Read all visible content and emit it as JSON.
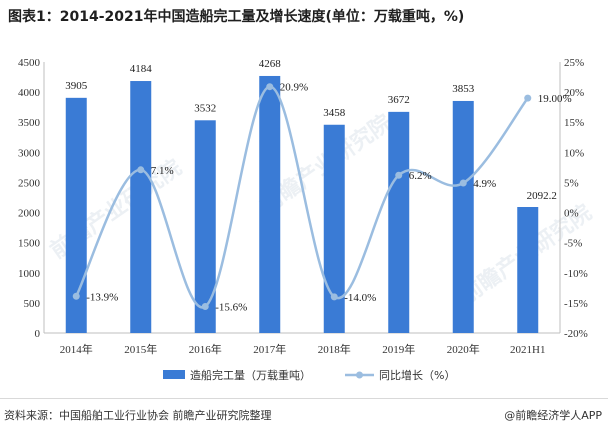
{
  "title": "图表1：2014-2021年中国造船完工量及增长速度(单位：万载重吨，%)",
  "source": "资料来源：中国船舶工业行业协会 前瞻产业研究院整理",
  "brand": "@前瞻经济学人APP",
  "watermark": "前瞻产业研究院",
  "colors": {
    "bar": "#3a7bd5",
    "line": "#9bbde0",
    "axis": "#bfbfbf",
    "text": "#333333"
  },
  "chart_data": {
    "type": "bar",
    "title": "图表1：2014-2021年中国造船完工量及增长速度(单位：万载重吨，%)",
    "categories": [
      "2014年",
      "2015年",
      "2016年",
      "2017年",
      "2018年",
      "2019年",
      "2020年",
      "2021H1"
    ],
    "series": [
      {
        "name": "造船完工量（万载重吨）",
        "type": "bar",
        "axis": "left",
        "values": [
          3905,
          4184,
          3532,
          4268,
          3458,
          3672,
          3853,
          2092.2
        ],
        "labels": [
          "3905",
          "4184",
          "3532",
          "4268",
          "3458",
          "3672",
          "3853",
          "2092.2"
        ]
      },
      {
        "name": "同比增长（%）",
        "type": "line",
        "axis": "right",
        "values": [
          -13.9,
          7.1,
          -15.6,
          20.9,
          -14.0,
          6.2,
          4.9,
          19.0
        ],
        "labels": [
          "-13.9%",
          "7.1%",
          "-15.6%",
          "20.9%",
          "-14.0%",
          "6.2%",
          "4.9%",
          "19.00%"
        ]
      }
    ],
    "ylim_left": [
      0,
      4500
    ],
    "yticks_left": [
      "0",
      "500",
      "1000",
      "1500",
      "2000",
      "2500",
      "3000",
      "3500",
      "4000",
      "4500"
    ],
    "ylim_right": [
      -20,
      25
    ],
    "yticks_right": [
      "-20%",
      "-15%",
      "-10%",
      "-5%",
      "0%",
      "5%",
      "10%",
      "15%",
      "20%",
      "25%"
    ],
    "grid": false,
    "legend_position": "bottom"
  }
}
